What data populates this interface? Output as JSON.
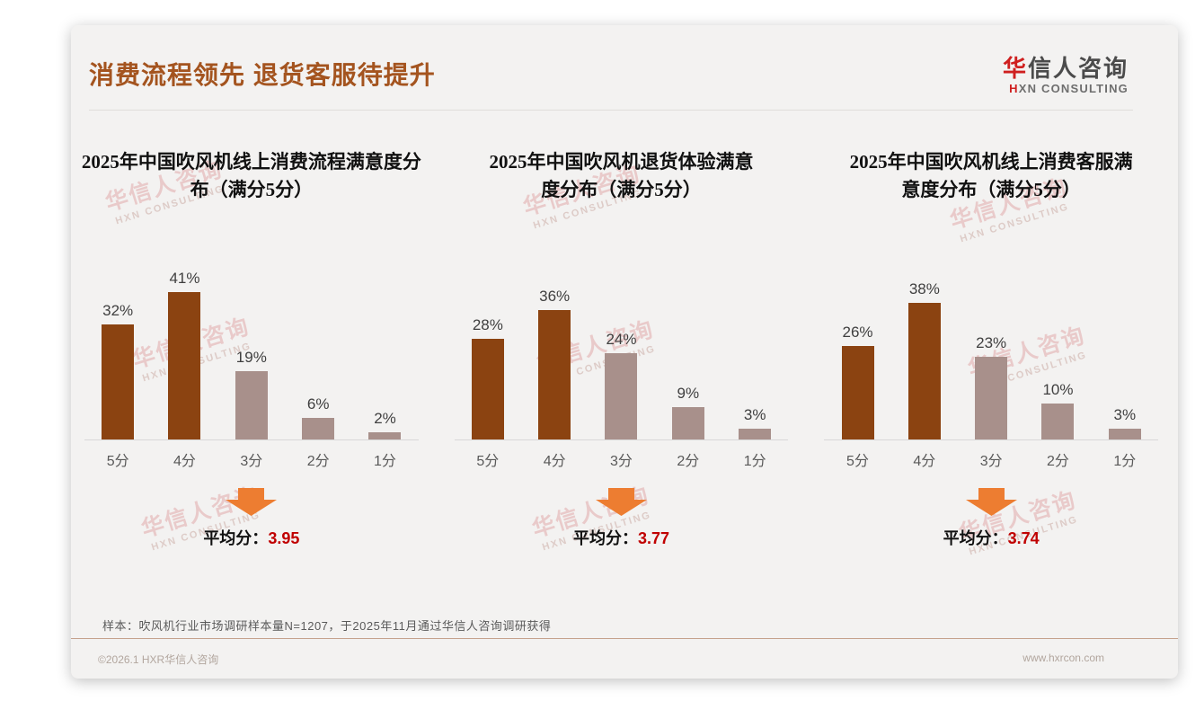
{
  "page": {
    "title": "消费流程领先 退货客服待提升",
    "logo": {
      "cn_first": "华",
      "cn_rest": "信人咨询",
      "en_first": "H",
      "en_rest": "XN CONSULTING"
    },
    "watermark": {
      "line1": "华信人咨询",
      "line2": "HXN CONSULTING"
    },
    "footnote": "样本：吹风机行业市场调研样本量N=1207，于2025年11月通过华信人咨询调研获得",
    "footer_left": "©2026.1 HXR华信人咨询",
    "footer_right": "www.hxrcon.com"
  },
  "colors": {
    "page_title": "#a4541f",
    "bar_dark": "#8b4311",
    "bar_light": "#a8908b",
    "arrow": "#ED7D31",
    "avg_value": "#C00000",
    "logo_red": "#cf1f1f"
  },
  "chart_data": [
    {
      "type": "bar",
      "title": "2025年中国吹风机线上消费流程满意度分布（满分5分）",
      "title_lines": [
        "2025年中国吹风机线上消费流程满意度分",
        "布（满分5分）"
      ],
      "categories": [
        "5分",
        "4分",
        "3分",
        "2分",
        "1分"
      ],
      "values": [
        32,
        41,
        19,
        6,
        2
      ],
      "value_labels": [
        "32%",
        "41%",
        "19%",
        "6%",
        "2%"
      ],
      "bar_palette": [
        "dark",
        "dark",
        "light",
        "light",
        "light"
      ],
      "ylim": [
        0,
        45
      ],
      "grid": false,
      "legend": false,
      "average_label": "平均分：",
      "average": "3.95"
    },
    {
      "type": "bar",
      "title": "2025年中国吹风机退货体验满意度分布（满分5分）",
      "title_lines": [
        "2025年中国吹风机退货体验满意",
        "度分布（满分5分）"
      ],
      "categories": [
        "5分",
        "4分",
        "3分",
        "2分",
        "1分"
      ],
      "values": [
        28,
        36,
        24,
        9,
        3
      ],
      "value_labels": [
        "28%",
        "36%",
        "24%",
        "9%",
        "3%"
      ],
      "bar_palette": [
        "dark",
        "dark",
        "light",
        "light",
        "light"
      ],
      "ylim": [
        0,
        45
      ],
      "grid": false,
      "legend": false,
      "average_label": "平均分：",
      "average": "3.77"
    },
    {
      "type": "bar",
      "title": "2025年中国吹风机线上消费客服满意度分布（满分5分）",
      "title_lines": [
        "2025年中国吹风机线上消费客服满",
        "意度分布（满分5分）"
      ],
      "categories": [
        "5分",
        "4分",
        "3分",
        "2分",
        "1分"
      ],
      "values": [
        26,
        38,
        23,
        10,
        3
      ],
      "value_labels": [
        "26%",
        "38%",
        "23%",
        "10%",
        "3%"
      ],
      "bar_palette": [
        "dark",
        "dark",
        "light",
        "light",
        "light"
      ],
      "ylim": [
        0,
        45
      ],
      "grid": false,
      "legend": false,
      "average_label": "平均分：",
      "average": "3.74"
    }
  ]
}
